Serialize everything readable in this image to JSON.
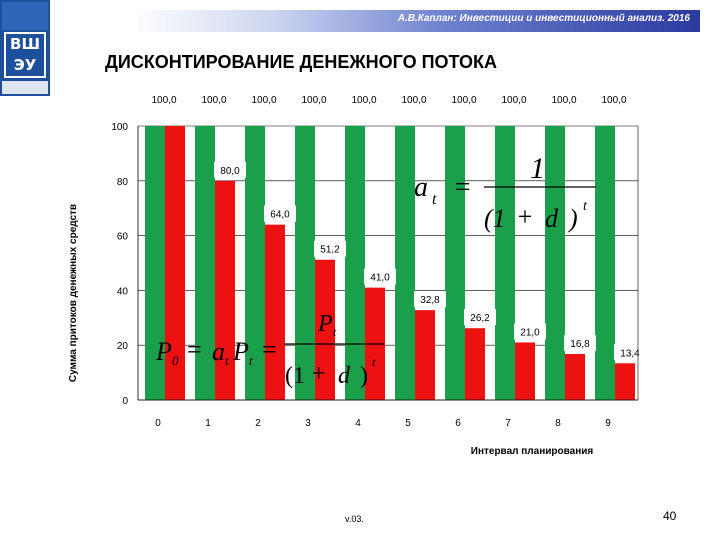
{
  "header": {
    "text": "А.В.Каплан: Инвестиции и инвестиционный анализ. 2016",
    "logo_text": "ВШЭУ"
  },
  "title": "ДИСКОНТИРОВАНИЕ ДЕНЕЖНОГО ПОТОКА",
  "colors": {
    "inflow": "#1aa04a",
    "discounted": "#ee1111",
    "header_dark": "#2b3a9f"
  },
  "formula1": {
    "lhs": "a",
    "lhs_sub": "t",
    "eq": "=",
    "num": "1",
    "den_open": "(1",
    "den_plus": "+",
    "den_var": "d",
    "den_close": ")",
    "den_exp": "t"
  },
  "formula2": {
    "lhs": "P",
    "lhs_sub": "0",
    "eq1": "=",
    "mid_a": "a",
    "mid_a_sub": "t",
    "mid_p": "P",
    "mid_p_sub": "t",
    "eq2": "=",
    "num": "P",
    "num_sub": "t",
    "den_open": "(1",
    "den_plus": "+",
    "den_var": "d",
    "den_close": ")",
    "den_exp": "t"
  },
  "chart_data": {
    "type": "bar",
    "categories": [
      "0",
      "1",
      "2",
      "3",
      "4",
      "5",
      "6",
      "7",
      "8",
      "9"
    ],
    "series": [
      {
        "values": [
          100,
          100,
          100,
          100,
          100,
          100,
          100,
          100,
          100,
          100
        ],
        "color": "#1aa04a"
      },
      {
        "values": [
          100,
          80,
          64,
          51.2,
          41,
          32.8,
          26.2,
          21,
          16.8,
          13.4
        ],
        "color": "#ee1111"
      }
    ],
    "data_labels": [
      "100,0",
      "80,0",
      "64,0",
      "51,2",
      "41,0",
      "32,8",
      "26,2",
      "21,0",
      "16,8",
      "13,4"
    ],
    "top_labels": [
      "100,0",
      "100,0",
      "100,0",
      "100,0",
      "100,0",
      "100,0",
      "100,0",
      "100,0",
      "100,0",
      "100,0"
    ],
    "ylim": [
      0,
      100
    ],
    "yticks": [
      "0",
      "20",
      "40",
      "60",
      "80",
      "100"
    ],
    "xlabel": "Интервал планирования",
    "ylabel": "Сумма притоков денежных средств",
    "grid": true
  },
  "footer": {
    "version": "v.03.",
    "page": "40"
  }
}
